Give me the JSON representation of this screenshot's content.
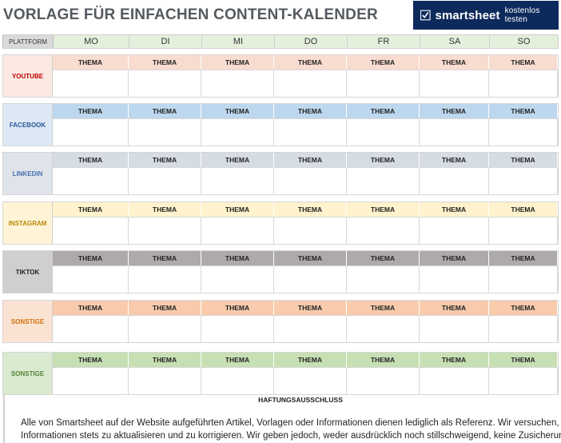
{
  "title": "VORLAGE FÜR EINFACHEN CONTENT-KALENDER",
  "brand": {
    "name": "smartsheet",
    "cta": "kostenlos testen",
    "icon": "smartsheet-check-logo",
    "bg_color": "#0d2a5c"
  },
  "header": {
    "label": "PLATTFORM",
    "days": [
      "MO",
      "DI",
      "MI",
      "DO",
      "FR",
      "SA",
      "SO"
    ]
  },
  "thema_label": "THEMA",
  "platforms": [
    {
      "name": "YOUTUBE",
      "label_color": "#c00000",
      "bar_color": "#f9dcd0",
      "label_bg": "#fbe9e2"
    },
    {
      "name": "FACEBOOK",
      "label_color": "#2e5597",
      "bar_color": "#bdd7ee",
      "label_bg": "#dce9f5"
    },
    {
      "name": "LINKEDIN",
      "label_color": "#4a6fb0",
      "bar_color": "#d6dce4",
      "label_bg": "#dfe4ea"
    },
    {
      "name": "INSTAGRAM",
      "label_color": "#b8860b",
      "bar_color": "#fff2cc",
      "label_bg": "#fff5d6"
    },
    {
      "name": "TIKTOK",
      "label_color": "#222222",
      "bar_color": "#aeaaaa",
      "label_bg": "#d0cece"
    },
    {
      "name": "SONSTIGE",
      "label_color": "#d4700a",
      "bar_color": "#f8cbad",
      "label_bg": "#fbe3d3"
    },
    {
      "name": "SONSTIGE",
      "label_color": "#548235",
      "bar_color": "#c6e0b4",
      "label_bg": "#d9ead0"
    }
  ],
  "disclaimer": {
    "title": "HAFTUNGSAUSSCHLUSS",
    "line1": "Alle von Smartsheet auf der Website aufgeführten Artikel, Vorlagen oder Informationen dienen lediglich als Referenz. Wir versuchen, die",
    "line2": "Informationen stets zu aktualisieren und zu korrigieren. Wir geben jedoch, weder ausdrücklich noch stillschweigend, keine Zusicherungen"
  }
}
